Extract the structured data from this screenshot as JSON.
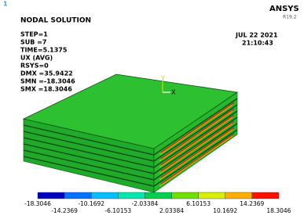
{
  "window_number": "1",
  "title": "NODAL SOLUTION",
  "brand": "ANSYS",
  "version": "R19.2",
  "info": [
    "STEP=1",
    "SUB =7",
    "TIME=5.1375",
    "UX      (AVG)",
    "RSYS=0",
    "DMX =35.9422",
    "SMN =-18.3046",
    "SMX =18.3046"
  ],
  "date": "JUL 22 2021",
  "time": "21:10:43",
  "triad": [
    "Y",
    "X"
  ],
  "colorbar": {
    "colors": [
      "#0000c4",
      "#0070ff",
      "#00c0ff",
      "#00e8b0",
      "#00d050",
      "#70e000",
      "#d8f000",
      "#ffb000",
      "#ff1000"
    ],
    "labels_top": [
      "-18.3046",
      "-10.1692",
      "-2.03384",
      "6.10153",
      "14.2369"
    ],
    "labels_bottom": [
      "-14.2369",
      "-6.10153",
      "2.03384",
      "10.1692",
      "18.3046"
    ]
  }
}
